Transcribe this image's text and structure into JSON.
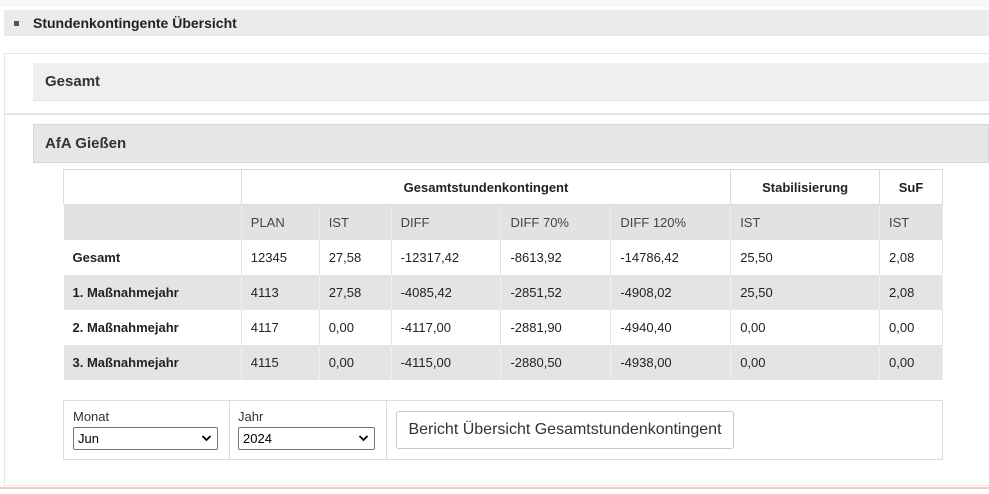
{
  "panel": {
    "title": "Stundenkontingente Übersicht"
  },
  "sections": {
    "gesamt": "Gesamt",
    "afa": "AfA Gießen"
  },
  "table": {
    "group_headers": {
      "gesamtstunden": "Gesamtstundenkontingent",
      "stabilisierung": "Stabilisierung",
      "suf": "SuF"
    },
    "columns": [
      "",
      "PLAN",
      "IST",
      "DIFF",
      "DIFF 70%",
      "DIFF 120%",
      "IST",
      "IST"
    ],
    "rows": [
      {
        "label": "Gesamt",
        "plan": "12345",
        "ist": "27,58",
        "diff": "-12317,42",
        "diff70": "-8613,92",
        "diff120": "-14786,42",
        "stab_ist": "25,50",
        "suf_ist": "2,08"
      },
      {
        "label": "1. Maßnahmejahr",
        "plan": "4113",
        "ist": "27,58",
        "diff": "-4085,42",
        "diff70": "-2851,52",
        "diff120": "-4908,02",
        "stab_ist": "25,50",
        "suf_ist": "2,08"
      },
      {
        "label": "2. Maßnahmejahr",
        "plan": "4117",
        "ist": "0,00",
        "diff": "-4117,00",
        "diff70": "-2881,90",
        "diff120": "-4940,40",
        "stab_ist": "0,00",
        "suf_ist": "0,00"
      },
      {
        "label": "3. Maßnahmejahr",
        "plan": "4115",
        "ist": "0,00",
        "diff": "-4115,00",
        "diff70": "-2880,50",
        "diff120": "-4938,00",
        "stab_ist": "0,00",
        "suf_ist": "0,00"
      }
    ]
  },
  "form": {
    "monat_label": "Monat",
    "monat_value": "Jun",
    "jahr_label": "Jahr",
    "jahr_value": "2024",
    "report_button": "Bericht Übersicht Gesamtstundenkontingent"
  },
  "icons": {
    "bullet": "square-bullet-icon",
    "dropdown": "chevron-down-icon"
  }
}
